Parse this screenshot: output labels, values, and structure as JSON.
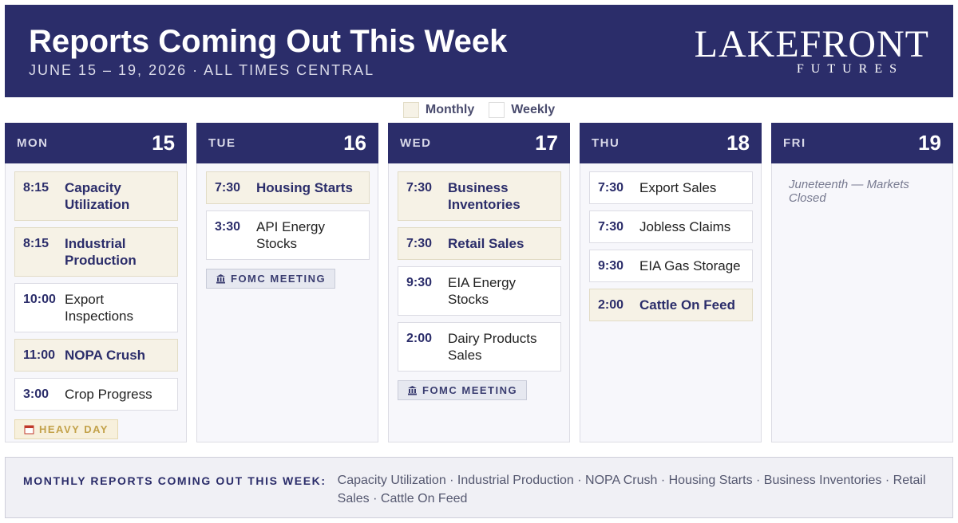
{
  "header": {
    "title": "Reports Coming Out This Week",
    "subtitle": "JUNE 15 – 19, 2026 · ALL TIMES CENTRAL",
    "logo": "LAKEFRONT",
    "logo_sub": "FUTURES"
  },
  "legend": [
    "Monthly",
    "Weekly"
  ],
  "days": [
    {
      "dow": "MON",
      "date": 15,
      "events": [
        {
          "time": "8:15",
          "name": "Capacity Utilization",
          "monthly": true
        },
        {
          "time": "8:15",
          "name": "Industrial Production",
          "monthly": true
        },
        {
          "time": "10:00",
          "name": "Export Inspections",
          "monthly": false
        },
        {
          "time": "11:00",
          "name": "NOPA Crush",
          "monthly": true
        },
        {
          "time": "3:00",
          "name": "Crop Progress",
          "monthly": false
        }
      ],
      "tag": "HEAVY DAY"
    },
    {
      "dow": "TUE",
      "date": 16,
      "events": [
        {
          "time": "7:30",
          "name": "Housing Starts",
          "monthly": true
        },
        {
          "time": "3:30",
          "name": "API Energy Stocks",
          "monthly": false
        }
      ],
      "tag": "FOMC MEETING"
    },
    {
      "dow": "WED",
      "date": 17,
      "events": [
        {
          "time": "7:30",
          "name": "Business Inventories",
          "monthly": true
        },
        {
          "time": "7:30",
          "name": "Retail Sales",
          "monthly": true
        },
        {
          "time": "9:30",
          "name": "EIA Energy Stocks",
          "monthly": false
        },
        {
          "time": "2:00",
          "name": "Dairy Products Sales",
          "monthly": false
        }
      ],
      "tag": "FOMC MEETING"
    },
    {
      "dow": "THU",
      "date": 18,
      "events": [
        {
          "time": "7:30",
          "name": "Export Sales",
          "monthly": false
        },
        {
          "time": "7:30",
          "name": "Jobless Claims",
          "monthly": false
        },
        {
          "time": "9:30",
          "name": "EIA Gas Storage",
          "monthly": false
        },
        {
          "time": "2:00",
          "name": "Cattle On Feed",
          "monthly": true
        }
      ]
    },
    {
      "dow": "FRI",
      "date": 19,
      "events": [],
      "note": "Juneteenth — Markets Closed"
    }
  ],
  "footer": {
    "label": "MONTHLY REPORTS COMING OUT THIS WEEK:",
    "reports": "Capacity Utilization · Industrial Production · NOPA Crush · Housing Starts · Business Inventories · Retail Sales · Cattle On Feed"
  }
}
